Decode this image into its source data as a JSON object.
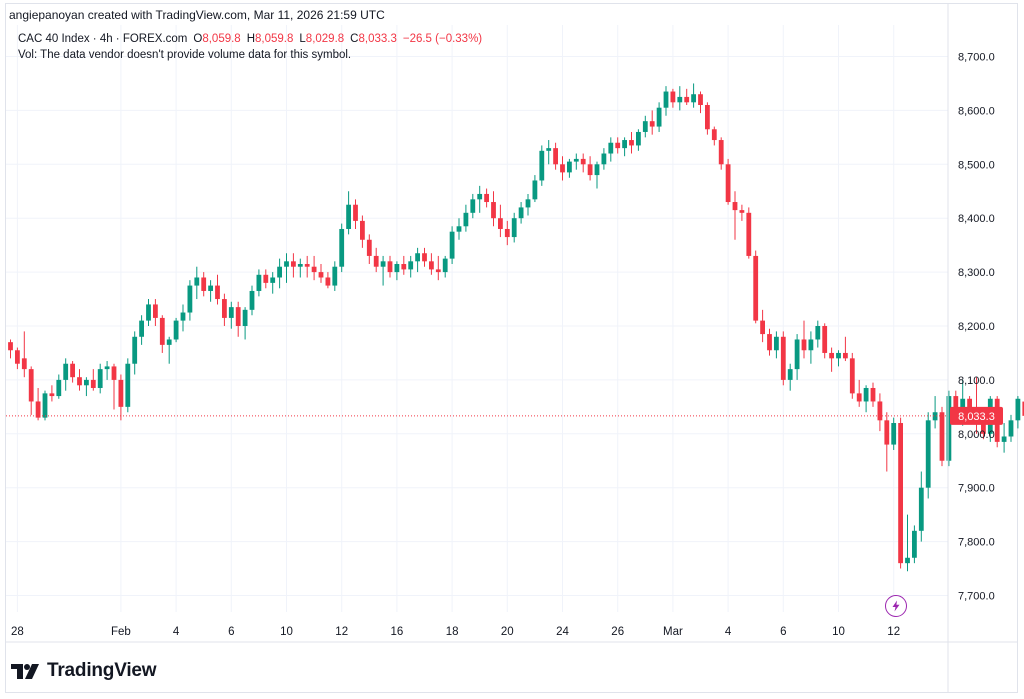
{
  "header": {
    "credit": "angiepanoyan created with TradingView.com, Mar 11, 2026 21:59 UTC",
    "symbol": "CAC 40 Index · 4h · FOREX.com",
    "open_label": "O",
    "open_value": "8,059.8",
    "high_label": "H",
    "high_value": "8,059.8",
    "low_label": "L",
    "low_value": "8,029.8",
    "close_label": "C",
    "close_value": "8,033.3",
    "change": "−26.5 (−0.33%)",
    "volume_note": "Vol: The data vendor doesn't provide volume data for this symbol."
  },
  "brand": {
    "name": "TradingView"
  },
  "colors": {
    "up": "#089981",
    "down": "#f23645",
    "grid": "#f0f3fa",
    "price_line": "#f23645",
    "text": "#131722"
  },
  "icons": {
    "logo": "tradingview-logo-icon",
    "flash": "lightning-icon"
  },
  "chart_data": {
    "type": "candlestick",
    "symbol": "CAC 40 Index",
    "interval": "4h",
    "source": "FOREX.com",
    "ylim": [
      7650,
      8750
    ],
    "y_ticks": [
      "8,700.0",
      "8,600.0",
      "8,500.0",
      "8,400.0",
      "8,300.0",
      "8,200.0",
      "8,100.0",
      "8,000.0",
      "7,900.0",
      "7,800.0",
      "7,700.0"
    ],
    "y_tick_values": [
      8700,
      8600,
      8500,
      8400,
      8300,
      8200,
      8100,
      8000,
      7900,
      7800,
      7700
    ],
    "x_ticks": [
      "28",
      "Feb",
      "4",
      "6",
      "10",
      "12",
      "16",
      "18",
      "20",
      "24",
      "26",
      "Mar",
      "4",
      "6",
      "10",
      "12"
    ],
    "x_tick_bar_index": [
      1,
      16,
      24,
      32,
      40,
      48,
      56,
      64,
      72,
      80,
      88,
      96,
      104,
      112,
      120,
      128
    ],
    "last_price": 8033.3,
    "last_price_label": "8,033.3",
    "grid": true,
    "candles": [
      [
        8170,
        8175,
        8140,
        8155
      ],
      [
        8155,
        8160,
        8120,
        8130
      ],
      [
        8140,
        8190,
        8105,
        8120
      ],
      [
        8120,
        8125,
        8035,
        8060
      ],
      [
        8060,
        8085,
        8025,
        8030
      ],
      [
        8030,
        8080,
        8025,
        8075
      ],
      [
        8075,
        8090,
        8060,
        8070
      ],
      [
        8070,
        8110,
        8065,
        8100
      ],
      [
        8100,
        8140,
        8080,
        8130
      ],
      [
        8130,
        8135,
        8095,
        8105
      ],
      [
        8105,
        8120,
        8080,
        8090
      ],
      [
        8090,
        8105,
        8070,
        8100
      ],
      [
        8100,
        8120,
        8080,
        8085
      ],
      [
        8085,
        8130,
        8075,
        8120
      ],
      [
        8120,
        8135,
        8100,
        8125
      ],
      [
        8125,
        8130,
        8045,
        8100
      ],
      [
        8100,
        8110,
        8025,
        8050
      ],
      [
        8050,
        8140,
        8040,
        8130
      ],
      [
        8130,
        8190,
        8110,
        8180
      ],
      [
        8180,
        8220,
        8165,
        8210
      ],
      [
        8210,
        8250,
        8200,
        8240
      ],
      [
        8240,
        8250,
        8200,
        8215
      ],
      [
        8215,
        8220,
        8150,
        8165
      ],
      [
        8165,
        8180,
        8130,
        8175
      ],
      [
        8175,
        8215,
        8170,
        8210
      ],
      [
        8210,
        8240,
        8190,
        8225
      ],
      [
        8225,
        8285,
        8210,
        8275
      ],
      [
        8275,
        8310,
        8250,
        8290
      ],
      [
        8290,
        8300,
        8255,
        8265
      ],
      [
        8265,
        8285,
        8245,
        8275
      ],
      [
        8275,
        8295,
        8240,
        8250
      ],
      [
        8250,
        8260,
        8200,
        8215
      ],
      [
        8215,
        8245,
        8195,
        8235
      ],
      [
        8235,
        8245,
        8180,
        8200
      ],
      [
        8200,
        8235,
        8175,
        8230
      ],
      [
        8230,
        8275,
        8220,
        8265
      ],
      [
        8265,
        8305,
        8255,
        8295
      ],
      [
        8295,
        8305,
        8270,
        8280
      ],
      [
        8280,
        8300,
        8260,
        8290
      ],
      [
        8290,
        8325,
        8270,
        8310
      ],
      [
        8310,
        8335,
        8280,
        8320
      ],
      [
        8320,
        8335,
        8290,
        8310
      ],
      [
        8310,
        8325,
        8290,
        8315
      ],
      [
        8315,
        8330,
        8290,
        8310
      ],
      [
        8310,
        8330,
        8285,
        8300
      ],
      [
        8300,
        8315,
        8280,
        8290
      ],
      [
        8290,
        8300,
        8270,
        8275
      ],
      [
        8275,
        8320,
        8265,
        8310
      ],
      [
        8310,
        8390,
        8300,
        8380
      ],
      [
        8380,
        8450,
        8370,
        8425
      ],
      [
        8425,
        8435,
        8380,
        8395
      ],
      [
        8395,
        8405,
        8345,
        8360
      ],
      [
        8360,
        8370,
        8315,
        8330
      ],
      [
        8330,
        8345,
        8300,
        8310
      ],
      [
        8310,
        8330,
        8275,
        8320
      ],
      [
        8320,
        8330,
        8290,
        8300
      ],
      [
        8300,
        8320,
        8285,
        8315
      ],
      [
        8315,
        8330,
        8295,
        8305
      ],
      [
        8305,
        8330,
        8290,
        8320
      ],
      [
        8320,
        8345,
        8300,
        8335
      ],
      [
        8335,
        8345,
        8310,
        8320
      ],
      [
        8320,
        8335,
        8295,
        8305
      ],
      [
        8305,
        8330,
        8285,
        8300
      ],
      [
        8300,
        8330,
        8290,
        8325
      ],
      [
        8325,
        8385,
        8315,
        8375
      ],
      [
        8375,
        8400,
        8360,
        8385
      ],
      [
        8385,
        8425,
        8375,
        8410
      ],
      [
        8410,
        8445,
        8400,
        8435
      ],
      [
        8435,
        8460,
        8410,
        8445
      ],
      [
        8445,
        8455,
        8420,
        8430
      ],
      [
        8430,
        8450,
        8385,
        8400
      ],
      [
        8400,
        8425,
        8365,
        8380
      ],
      [
        8380,
        8395,
        8350,
        8365
      ],
      [
        8365,
        8410,
        8355,
        8400
      ],
      [
        8400,
        8430,
        8390,
        8420
      ],
      [
        8420,
        8445,
        8405,
        8435
      ],
      [
        8435,
        8480,
        8430,
        8470
      ],
      [
        8470,
        8535,
        8460,
        8525
      ],
      [
        8525,
        8545,
        8500,
        8530
      ],
      [
        8530,
        8540,
        8490,
        8500
      ],
      [
        8500,
        8515,
        8470,
        8485
      ],
      [
        8485,
        8510,
        8475,
        8505
      ],
      [
        8505,
        8520,
        8490,
        8510
      ],
      [
        8510,
        8520,
        8485,
        8500
      ],
      [
        8500,
        8515,
        8470,
        8480
      ],
      [
        8480,
        8505,
        8455,
        8500
      ],
      [
        8500,
        8530,
        8490,
        8520
      ],
      [
        8520,
        8550,
        8505,
        8540
      ],
      [
        8540,
        8550,
        8520,
        8530
      ],
      [
        8530,
        8550,
        8515,
        8545
      ],
      [
        8545,
        8560,
        8520,
        8535
      ],
      [
        8535,
        8565,
        8525,
        8560
      ],
      [
        8560,
        8590,
        8550,
        8580
      ],
      [
        8580,
        8600,
        8555,
        8570
      ],
      [
        8570,
        8615,
        8560,
        8605
      ],
      [
        8605,
        8645,
        8590,
        8635
      ],
      [
        8635,
        8640,
        8605,
        8615
      ],
      [
        8615,
        8645,
        8600,
        8625
      ],
      [
        8625,
        8640,
        8610,
        8615
      ],
      [
        8615,
        8650,
        8605,
        8630
      ],
      [
        8630,
        8635,
        8595,
        8610
      ],
      [
        8610,
        8615,
        8555,
        8565
      ],
      [
        8565,
        8570,
        8535,
        8545
      ],
      [
        8545,
        8550,
        8490,
        8500
      ],
      [
        8500,
        8510,
        8425,
        8430
      ],
      [
        8430,
        8450,
        8360,
        8415
      ],
      [
        8415,
        8425,
        8395,
        8410
      ],
      [
        8410,
        8420,
        8325,
        8330
      ],
      [
        8330,
        8340,
        8205,
        8210
      ],
      [
        8210,
        8230,
        8170,
        8185
      ],
      [
        8185,
        8195,
        8145,
        8155
      ],
      [
        8155,
        8190,
        8140,
        8180
      ],
      [
        8180,
        8190,
        8090,
        8100
      ],
      [
        8100,
        8130,
        8080,
        8120
      ],
      [
        8120,
        8185,
        8100,
        8175
      ],
      [
        8175,
        8210,
        8140,
        8155
      ],
      [
        8155,
        8190,
        8130,
        8175
      ],
      [
        8175,
        8210,
        8160,
        8200
      ],
      [
        8200,
        8205,
        8140,
        8150
      ],
      [
        8150,
        8160,
        8115,
        8140
      ],
      [
        8140,
        8155,
        8125,
        8150
      ],
      [
        8150,
        8180,
        8135,
        8140
      ],
      [
        8140,
        8150,
        8065,
        8075
      ],
      [
        8075,
        8100,
        8050,
        8060
      ],
      [
        8060,
        8090,
        8040,
        8085
      ],
      [
        8085,
        8095,
        8050,
        8060
      ],
      [
        8060,
        8075,
        8005,
        8025
      ],
      [
        8025,
        8040,
        7930,
        7980
      ],
      [
        7980,
        8030,
        7970,
        8020
      ],
      [
        8020,
        8030,
        7750,
        7760
      ],
      [
        7760,
        7850,
        7745,
        7770
      ],
      [
        7770,
        7830,
        7760,
        7820
      ],
      [
        7820,
        7930,
        7800,
        7900
      ],
      [
        7900,
        8040,
        7880,
        8025
      ],
      [
        8025,
        8070,
        8010,
        8040
      ],
      [
        8040,
        8050,
        7940,
        7950
      ],
      [
        7950,
        8080,
        7940,
        8070
      ],
      [
        8070,
        8080,
        8020,
        8025
      ],
      [
        8025,
        8100,
        8015,
        8065
      ],
      [
        8065,
        8070,
        8020,
        8030
      ],
      [
        8030,
        8105,
        8000,
        8020
      ],
      [
        8020,
        8025,
        7990,
        8000
      ],
      [
        8000,
        8070,
        7985,
        8065
      ],
      [
        8065,
        8070,
        7975,
        7985
      ],
      [
        7985,
        8020,
        7965,
        7995
      ],
      [
        7995,
        8035,
        7985,
        8025
      ],
      [
        8025,
        8070,
        8010,
        8065
      ],
      [
        8059.8,
        8059.8,
        8029.8,
        8033.3
      ]
    ]
  }
}
